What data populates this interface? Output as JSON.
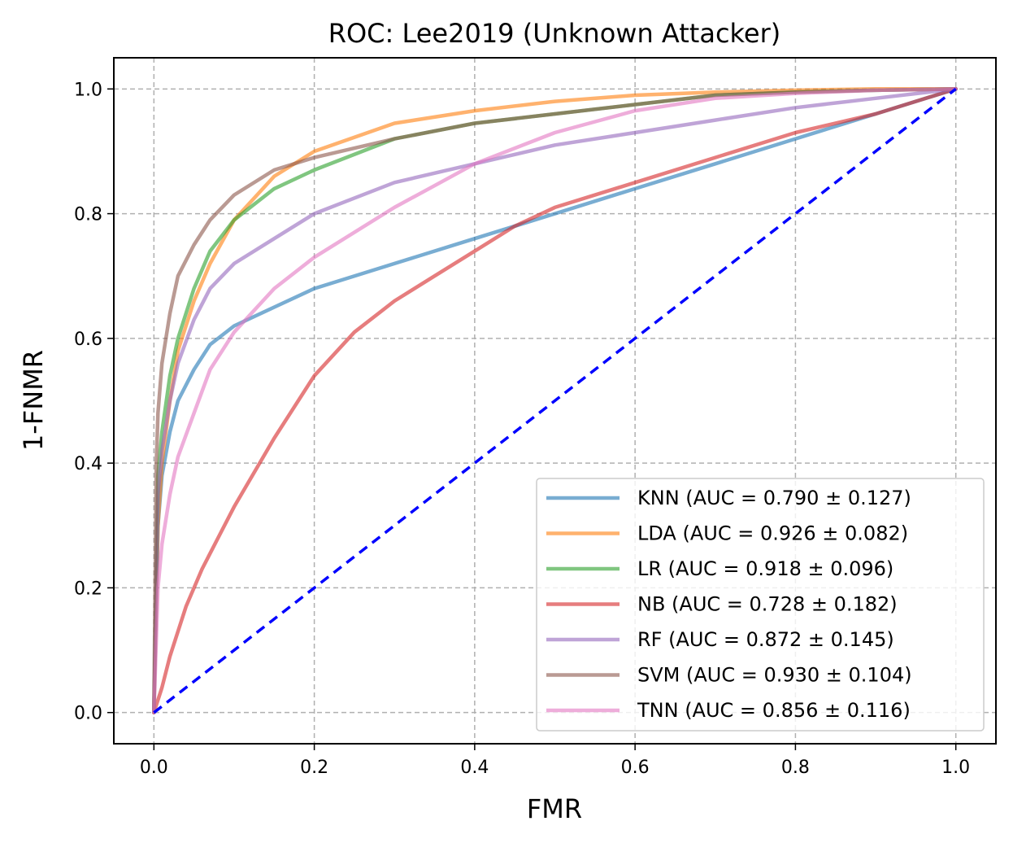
{
  "chart_data": {
    "type": "line",
    "title": "ROC: Lee2019 (Unknown Attacker)",
    "xlabel": "FMR",
    "ylabel": "1-FNMR",
    "xlim": [
      -0.05,
      1.05
    ],
    "ylim": [
      -0.05,
      1.05
    ],
    "xticks": [
      "0.0",
      "0.2",
      "0.4",
      "0.6",
      "0.8",
      "1.0"
    ],
    "yticks": [
      "0.0",
      "0.2",
      "0.4",
      "0.6",
      "0.8",
      "1.0"
    ],
    "grid": true,
    "legend_position": "lower-right",
    "series": [
      {
        "name": "KNN (AUC = 0.790 ± 0.127)",
        "color": "#1f77b4",
        "x": [
          0,
          0.005,
          0.01,
          0.02,
          0.03,
          0.05,
          0.07,
          0.1,
          0.15,
          0.2,
          0.3,
          0.4,
          0.5,
          0.6,
          0.7,
          0.8,
          0.9,
          1.0
        ],
        "y": [
          0,
          0.3,
          0.38,
          0.45,
          0.5,
          0.55,
          0.59,
          0.62,
          0.65,
          0.68,
          0.72,
          0.76,
          0.8,
          0.84,
          0.88,
          0.92,
          0.96,
          1.0
        ]
      },
      {
        "name": "LDA (AUC = 0.926 ± 0.082)",
        "color": "#ff7f0e",
        "x": [
          0,
          0.005,
          0.01,
          0.02,
          0.03,
          0.05,
          0.07,
          0.1,
          0.15,
          0.2,
          0.3,
          0.4,
          0.5,
          0.6,
          0.7,
          0.8,
          0.9,
          1.0
        ],
        "y": [
          0,
          0.3,
          0.4,
          0.5,
          0.58,
          0.66,
          0.72,
          0.79,
          0.86,
          0.9,
          0.945,
          0.965,
          0.98,
          0.99,
          0.995,
          0.998,
          1.0,
          1.0
        ]
      },
      {
        "name": "LR (AUC = 0.918 ± 0.096)",
        "color": "#2ca02c",
        "x": [
          0,
          0.005,
          0.01,
          0.02,
          0.03,
          0.05,
          0.07,
          0.1,
          0.15,
          0.2,
          0.3,
          0.4,
          0.5,
          0.6,
          0.7,
          0.8,
          0.9,
          1.0
        ],
        "y": [
          0,
          0.38,
          0.45,
          0.54,
          0.6,
          0.68,
          0.74,
          0.79,
          0.84,
          0.87,
          0.92,
          0.945,
          0.96,
          0.975,
          0.99,
          0.995,
          0.998,
          1.0
        ]
      },
      {
        "name": "NB (AUC = 0.728 ± 0.182)",
        "color": "#d62728",
        "x": [
          0,
          0.01,
          0.02,
          0.04,
          0.06,
          0.08,
          0.1,
          0.15,
          0.2,
          0.25,
          0.3,
          0.35,
          0.4,
          0.45,
          0.5,
          0.6,
          0.7,
          0.8,
          0.9,
          1.0
        ],
        "y": [
          0,
          0.04,
          0.09,
          0.17,
          0.23,
          0.28,
          0.33,
          0.44,
          0.54,
          0.61,
          0.66,
          0.7,
          0.74,
          0.78,
          0.81,
          0.85,
          0.89,
          0.93,
          0.96,
          1.0
        ]
      },
      {
        "name": "RF (AUC = 0.872 ± 0.145)",
        "color": "#9467bd",
        "x": [
          0,
          0.005,
          0.01,
          0.02,
          0.03,
          0.05,
          0.07,
          0.1,
          0.15,
          0.2,
          0.3,
          0.4,
          0.5,
          0.6,
          0.7,
          0.8,
          0.9,
          1.0
        ],
        "y": [
          0,
          0.35,
          0.42,
          0.5,
          0.56,
          0.63,
          0.68,
          0.72,
          0.76,
          0.8,
          0.85,
          0.88,
          0.91,
          0.93,
          0.95,
          0.97,
          0.985,
          1.0
        ]
      },
      {
        "name": "SVM (AUC = 0.930 ± 0.104)",
        "color": "#8c564b",
        "x": [
          0,
          0.003,
          0.005,
          0.01,
          0.02,
          0.03,
          0.05,
          0.07,
          0.1,
          0.15,
          0.2,
          0.3,
          0.4,
          0.5,
          0.6,
          0.7,
          0.8,
          0.9,
          1.0
        ],
        "y": [
          0,
          0.4,
          0.48,
          0.56,
          0.64,
          0.7,
          0.75,
          0.79,
          0.83,
          0.87,
          0.89,
          0.92,
          0.945,
          0.96,
          0.975,
          0.99,
          0.995,
          0.998,
          1.0
        ]
      },
      {
        "name": "TNN (AUC = 0.856 ± 0.116)",
        "color": "#e377c2",
        "x": [
          0,
          0.005,
          0.01,
          0.02,
          0.03,
          0.05,
          0.07,
          0.1,
          0.15,
          0.2,
          0.3,
          0.4,
          0.5,
          0.6,
          0.7,
          0.8,
          0.9,
          1.0
        ],
        "y": [
          0,
          0.2,
          0.27,
          0.35,
          0.41,
          0.48,
          0.55,
          0.61,
          0.68,
          0.73,
          0.81,
          0.88,
          0.93,
          0.965,
          0.985,
          0.993,
          0.998,
          1.0
        ]
      }
    ],
    "reference_line": {
      "color": "#0000ff",
      "style": "dashed",
      "x": [
        0,
        1
      ],
      "y": [
        0,
        1
      ]
    }
  }
}
